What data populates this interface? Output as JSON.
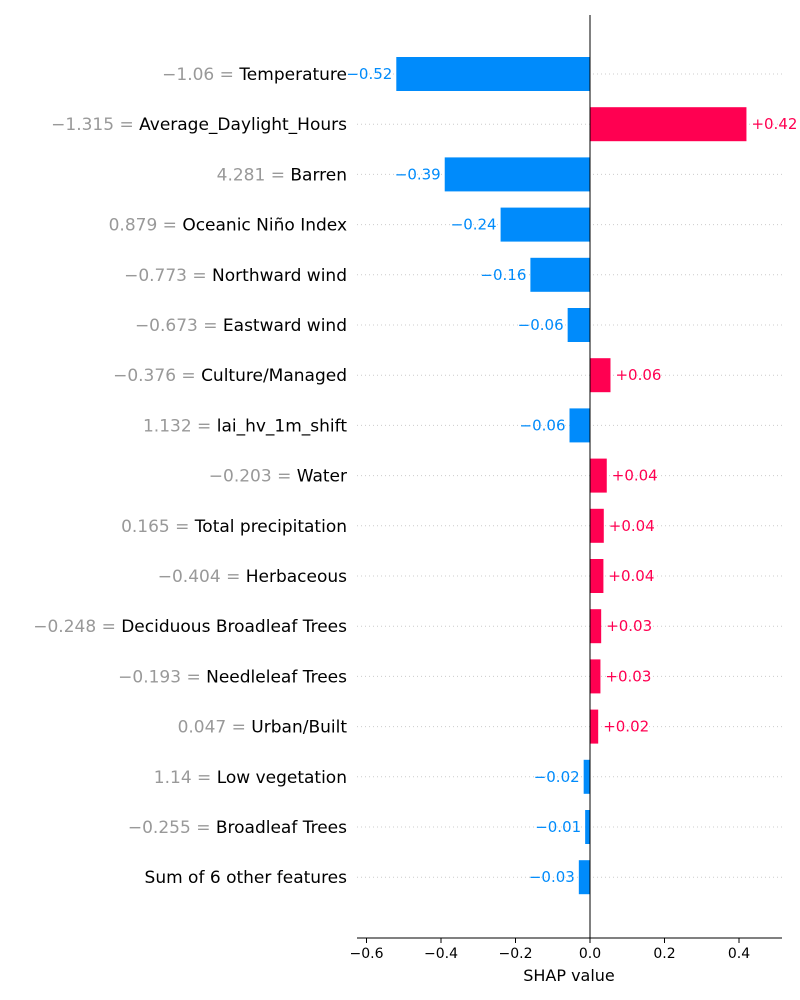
{
  "chart_data": {
    "type": "bar",
    "subtype": "shap-waterfall-bar",
    "xlabel": "SHAP value",
    "xlim": [
      -0.63,
      0.52
    ],
    "xticks": [
      -0.6,
      -0.4,
      -0.2,
      0.0,
      0.2,
      0.4
    ],
    "xtick_labels": [
      "−0.6",
      "−0.4",
      "−0.2",
      "0.0",
      "0.2",
      "0.4"
    ],
    "colors": {
      "positive": "#ff0051",
      "negative": "#008bfb",
      "feature_value": "#999999",
      "feature_name": "#000000"
    },
    "features": [
      {
        "value_text": "−1.06 =",
        "name": "Temperature",
        "shap": -0.52,
        "label": "−0.52"
      },
      {
        "value_text": "−1.315 =",
        "name": "Average_Daylight_Hours",
        "shap": 0.42,
        "label": "+0.42"
      },
      {
        "value_text": "4.281 =",
        "name": "Barren",
        "shap": -0.39,
        "label": "−0.39"
      },
      {
        "value_text": "0.879 =",
        "name": "Oceanic Niño Index",
        "shap": -0.24,
        "label": "−0.24"
      },
      {
        "value_text": "−0.773 =",
        "name": "Northward wind",
        "shap": -0.16,
        "label": "−0.16"
      },
      {
        "value_text": "−0.673 =",
        "name": "Eastward wind",
        "shap": -0.06,
        "label": "−0.06"
      },
      {
        "value_text": "−0.376 =",
        "name": "Culture/Managed",
        "shap": 0.055,
        "label": "+0.06"
      },
      {
        "value_text": "1.132 =",
        "name": "lai_hv_1m_shift",
        "shap": -0.055,
        "label": "−0.06"
      },
      {
        "value_text": "−0.203 =",
        "name": "Water",
        "shap": 0.045,
        "label": "+0.04"
      },
      {
        "value_text": "0.165 =",
        "name": "Total precipitation",
        "shap": 0.037,
        "label": "+0.04"
      },
      {
        "value_text": "−0.404 =",
        "name": "Herbaceous",
        "shap": 0.036,
        "label": "+0.04"
      },
      {
        "value_text": "−0.248 =",
        "name": "Deciduous Broadleaf Trees",
        "shap": 0.03,
        "label": "+0.03"
      },
      {
        "value_text": "−0.193 =",
        "name": "Needleleaf Trees",
        "shap": 0.028,
        "label": "+0.03"
      },
      {
        "value_text": "0.047 =",
        "name": "Urban/Built",
        "shap": 0.022,
        "label": "+0.02"
      },
      {
        "value_text": "1.14 =",
        "name": "Low vegetation",
        "shap": -0.017,
        "label": "−0.02"
      },
      {
        "value_text": "−0.255 =",
        "name": "Broadleaf Trees",
        "shap": -0.013,
        "label": "−0.01"
      },
      {
        "value_text": "",
        "name": "Sum of 6 other features",
        "shap": -0.03,
        "label": "−0.03"
      }
    ]
  }
}
